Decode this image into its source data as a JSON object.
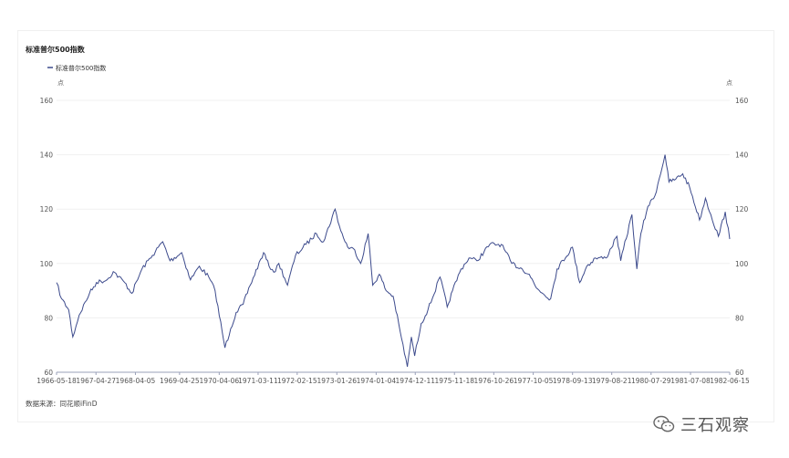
{
  "chart_data": {
    "type": "line",
    "title": "标准普尔500指数",
    "legend": [
      "标准普尔500指数"
    ],
    "legend_position": "top-left",
    "y_unit_left": "点",
    "y_unit_right": "点",
    "ylim": [
      60,
      160
    ],
    "yticks": [
      "60",
      "80",
      "100",
      "120",
      "140",
      "160"
    ],
    "xlim": [
      "1966-05-18",
      "1982-06-15"
    ],
    "xticks": [
      "1966-05-18",
      "1967-04-27",
      "1968-04-05",
      "1969-04-25",
      "1970-04-06",
      "1971-03-11",
      "1972-02-15",
      "1973-01-26",
      "1974-01-04",
      "1974-12-11",
      "1975-11-18",
      "1976-10-26",
      "1977-10-05",
      "1978-09-13",
      "1979-08-21",
      "1980-07-29",
      "1981-07-08",
      "1982-06-15"
    ],
    "grid": "horizontal",
    "series_color": "#3c4a8c",
    "series": [
      {
        "name": "标准普尔500指数",
        "x": [
          "1966-05-18",
          "1966-07-01",
          "1966-09-01",
          "1966-10-07",
          "1966-12-01",
          "1967-03-01",
          "1967-05-01",
          "1967-08-01",
          "1967-09-25",
          "1968-01-02",
          "1968-03-05",
          "1968-06-01",
          "1968-09-01",
          "1968-11-29",
          "1969-02-01",
          "1969-05-14",
          "1969-07-29",
          "1969-10-15",
          "1970-01-05",
          "1970-03-01",
          "1970-05-26",
          "1970-07-15",
          "1970-09-01",
          "1970-11-01",
          "1971-01-01",
          "1971-04-28",
          "1971-06-15",
          "1971-08-09",
          "1971-09-08",
          "1971-11-23",
          "1972-02-01",
          "1972-05-01",
          "1972-08-01",
          "1972-10-01",
          "1973-01-11",
          "1973-03-01",
          "1973-05-01",
          "1973-07-01",
          "1973-08-22",
          "1973-10-26",
          "1973-12-05",
          "1974-02-01",
          "1974-04-01",
          "1974-06-01",
          "1974-08-01",
          "1974-10-03",
          "1974-11-07",
          "1974-12-06",
          "1975-02-01",
          "1975-04-01",
          "1975-07-15",
          "1975-09-16",
          "1975-11-01",
          "1976-01-15",
          "1976-03-24",
          "1976-06-01",
          "1976-09-21",
          "1976-12-31",
          "1977-04-01",
          "1977-07-01",
          "1977-09-01",
          "1977-11-01",
          "1978-03-06",
          "1978-05-01",
          "1978-09-12",
          "1978-11-14",
          "1979-01-15",
          "1979-04-01",
          "1979-07-01",
          "1979-10-05",
          "1979-11-07",
          "1980-02-13",
          "1980-03-27",
          "1980-05-01",
          "1980-07-01",
          "1980-09-01",
          "1980-11-28",
          "1981-01-01",
          "1981-03-01",
          "1981-05-01",
          "1981-07-01",
          "1981-09-25",
          "1981-11-15",
          "1982-01-01",
          "1982-03-08",
          "1982-05-07",
          "1982-06-15"
        ],
        "y": [
          93,
          87,
          83,
          73,
          81,
          89,
          93,
          94,
          97,
          93,
          89,
          98,
          103,
          108,
          101,
          104,
          94,
          99,
          95,
          90,
          69,
          76,
          82,
          85,
          92,
          104,
          99,
          97,
          100,
          92,
          103,
          107,
          111,
          108,
          120,
          112,
          106,
          105,
          100,
          111,
          92,
          96,
          90,
          88,
          75,
          62,
          73,
          66,
          78,
          83,
          95,
          84,
          90,
          98,
          102,
          101,
          107,
          107,
          100,
          98,
          96,
          91,
          87,
          98,
          106,
          93,
          99,
          102,
          102,
          110,
          101,
          118,
          98,
          111,
          121,
          125,
          140,
          130,
          131,
          133,
          128,
          116,
          124,
          118,
          110,
          119,
          109
        ]
      }
    ]
  },
  "source": "数据来源：同花顺iFinD",
  "watermark": {
    "text": "三石观察",
    "icon": "wechat-icon"
  }
}
